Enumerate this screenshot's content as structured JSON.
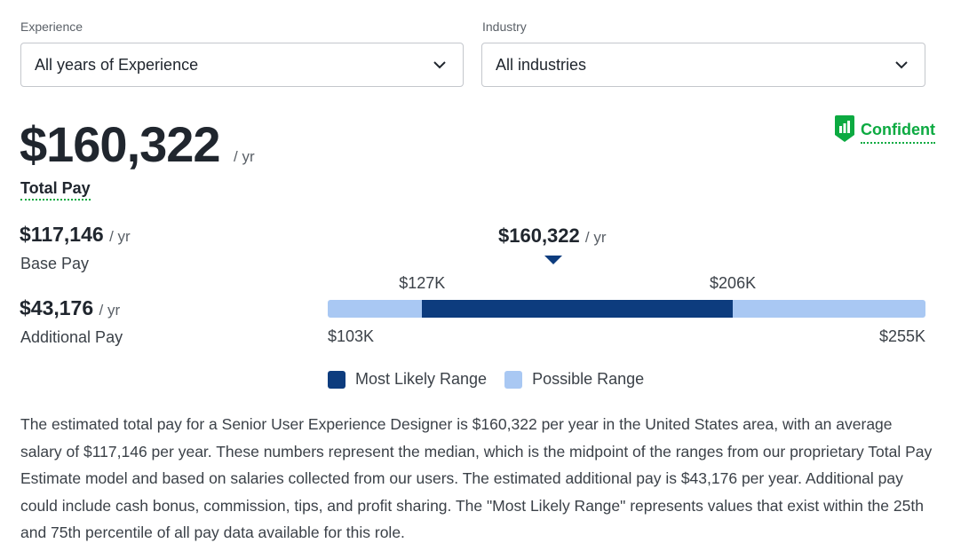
{
  "filters": {
    "experience": {
      "label": "Experience",
      "value": "All years of Experience"
    },
    "industry": {
      "label": "Industry",
      "value": "All industries"
    }
  },
  "total_pay": {
    "amount": "$160,322",
    "per": "/ yr",
    "label": "Total Pay"
  },
  "confidence": {
    "label": "Confident",
    "icon": "bar-chart-shield-icon",
    "color": "#0caa41"
  },
  "breakdown": {
    "base": {
      "amount": "$117,146",
      "per": "/ yr",
      "label": "Base Pay"
    },
    "additional": {
      "amount": "$43,176",
      "per": "/ yr",
      "label": "Additional Pay"
    }
  },
  "range_chart": {
    "median_label": "$160,322",
    "median_per": "/ yr",
    "likely_low_label": "$127K",
    "likely_high_label": "$206K",
    "possible_low_label": "$103K",
    "possible_high_label": "$255K",
    "median_value": 160322,
    "likely_low": 127000,
    "likely_high": 206000,
    "possible_low": 103000,
    "possible_high": 255000,
    "colors": {
      "likely": "#0d3c7e",
      "possible": "#a9c8f3"
    }
  },
  "legend": {
    "likely": "Most Likely Range",
    "possible": "Possible Range"
  },
  "description": "The estimated total pay for a Senior User Experience Designer is $160,322 per year in the United States area, with an average salary of $117,146 per year. These numbers represent the median, which is the midpoint of the ranges from our proprietary Total Pay Estimate model and based on salaries collected from our users. The estimated additional pay is $43,176 per year. Additional pay could include cash bonus, commission, tips, and profit sharing. The \"Most Likely Range\" represents values that exist within the 25th and 75th percentile of all pay data available for this role."
}
